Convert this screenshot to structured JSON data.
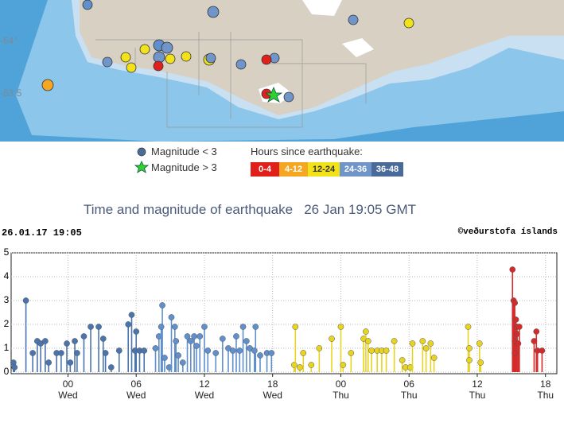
{
  "map": {
    "labels": [
      "-64°",
      "-63.5"
    ]
  },
  "legend": {
    "markers": [
      "Magnitude < 3",
      "Magnitude > 3"
    ],
    "title": "Hours since earthquake:",
    "bins": [
      {
        "label": "0-4",
        "color": "#e0201b"
      },
      {
        "label": "4-12",
        "color": "#f5a623"
      },
      {
        "label": "12-24",
        "color": "#f2e21a"
      },
      {
        "label": "24-36",
        "color": "#6f95c9"
      },
      {
        "label": "36-48",
        "color": "#4a6a99"
      }
    ]
  },
  "chart_data": {
    "type": "stem",
    "title": "Time and magnitude of earthquake   26 Jan 19:05 GMT",
    "timestamp": "26.01.17 19:05",
    "credit": "©veðurstofa íslands",
    "xlim": [
      -5,
      43
    ],
    "xticks": [
      {
        "value": 0,
        "label": "00\nWed"
      },
      {
        "value": 6,
        "label": "06\nWed"
      },
      {
        "value": 12,
        "label": "12\nWed"
      },
      {
        "value": 18,
        "label": "18\nWed"
      },
      {
        "value": 24,
        "label": "00\nThu"
      },
      {
        "value": 30,
        "label": "06\nThu"
      },
      {
        "value": 36,
        "label": "12\nThu"
      },
      {
        "value": 42,
        "label": "18\nThu"
      }
    ],
    "ylim": [
      0,
      5
    ],
    "yticks": [
      0,
      1,
      2,
      3,
      4,
      5
    ],
    "grid": true,
    "series": [
      {
        "color": "#4a74ad",
        "x": [
          -4.8,
          -4.7,
          -3.7,
          -3.1,
          -2.7,
          -2.4,
          -2.0,
          -1.7,
          -1.0,
          -0.6,
          -0.1,
          0.2,
          0.6,
          0.8,
          1.4,
          2.0,
          2.7,
          3.1,
          3.3,
          3.8,
          4.5,
          5.3,
          5.6,
          6.0,
          5.9,
          6.3,
          6.7
        ],
        "values": [
          0.4,
          0.2,
          3.0,
          0.8,
          1.3,
          1.2,
          1.3,
          0.4,
          0.8,
          0.8,
          1.2,
          0.4,
          1.3,
          0.8,
          1.5,
          1.9,
          1.9,
          1.4,
          0.8,
          0.2,
          0.9,
          2.0,
          2.4,
          1.7,
          0.9,
          0.9,
          0.9
        ]
      },
      {
        "color": "#5f8fcc",
        "x": [
          7.7,
          8.0,
          8.3,
          8.2,
          8.5,
          8.9,
          9.1,
          9.4,
          9.5,
          9.7,
          10.1,
          10.5,
          10.8,
          11.1,
          11.3,
          11.6,
          12.0,
          12.3,
          13.0,
          13.6,
          14.1,
          14.5,
          14.8,
          15.1,
          15.4,
          15.7,
          16.0,
          16.4,
          16.5,
          16.9,
          17.5,
          17.9
        ],
        "values": [
          1.0,
          1.5,
          2.8,
          1.9,
          0.6,
          0.2,
          2.3,
          1.9,
          1.3,
          0.7,
          0.4,
          1.5,
          1.3,
          1.5,
          1.1,
          1.5,
          1.9,
          0.9,
          0.8,
          1.4,
          1.0,
          0.9,
          1.5,
          0.9,
          1.9,
          1.3,
          1.0,
          0.9,
          1.9,
          0.7,
          0.8,
          0.8
        ]
      },
      {
        "color": "#e8d420",
        "x": [
          19.9,
          20.0,
          20.4,
          20.7,
          21.4,
          22.1,
          23.2,
          24.0,
          24.2,
          24.9,
          26.0,
          26.2,
          26.4,
          26.7,
          27.2,
          27.6,
          28.0,
          28.7,
          29.4,
          29.7,
          30.1,
          30.3,
          31.2,
          31.5,
          31.9,
          32.2,
          35.2,
          35.3,
          35.3,
          36.2,
          36.3
        ],
        "values": [
          0.3,
          1.9,
          0.2,
          0.8,
          0.3,
          1.0,
          1.4,
          1.9,
          0.3,
          0.8,
          1.4,
          1.7,
          1.3,
          0.9,
          0.9,
          0.9,
          0.9,
          1.3,
          0.5,
          0.2,
          0.2,
          1.2,
          1.3,
          1.0,
          1.2,
          0.6,
          1.9,
          1.0,
          0.5,
          1.2,
          0.4
        ]
      },
      {
        "color": "#d42a2a",
        "x": [
          39.1,
          39.2,
          39.3,
          39.4,
          39.5,
          39.5,
          39.3,
          39.6,
          39.3,
          39.7,
          41.0,
          41.2,
          41.3,
          41.7
        ],
        "values": [
          4.3,
          3.0,
          2.9,
          2.2,
          1.9,
          1.6,
          1.3,
          1.2,
          0.8,
          1.9,
          1.3,
          1.7,
          0.9,
          0.9
        ]
      }
    ]
  }
}
